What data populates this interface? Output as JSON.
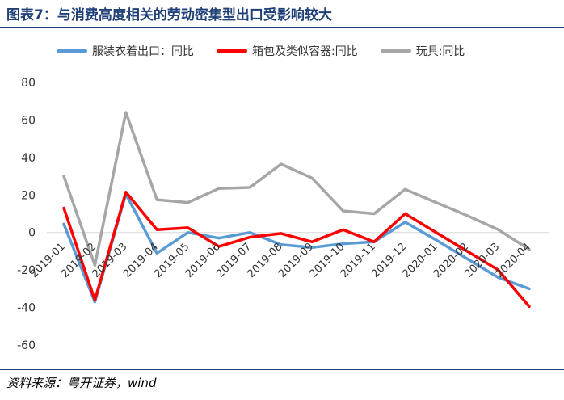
{
  "header": {
    "title": "图表7：与消费高度相关的劳动密集型出口受影响较大"
  },
  "footer": {
    "source": "资料来源：粤开证券，wind"
  },
  "colors": {
    "clothing": "#5b9bd5",
    "bags": "#ff0000",
    "toys": "#a6a6a6",
    "title": "#1f3f77"
  },
  "chart_data": {
    "type": "line",
    "title": "",
    "xlabel": "",
    "ylabel": "",
    "ylim": [
      -60,
      80
    ],
    "yticks": [
      80,
      60,
      40,
      20,
      0,
      -20,
      -40,
      -60
    ],
    "grid": false,
    "legend_position": "top",
    "x": [
      "2019-01",
      "2019-02",
      "2019-03",
      "2019-04",
      "2019-05",
      "2019-06",
      "2019-07",
      "2019-08",
      "2019-09",
      "2019-10",
      "2019-11",
      "2019-12",
      "2020-01",
      "2020-02",
      "2020-03",
      "2020-04"
    ],
    "series": [
      {
        "name": "服装衣着出口：同比",
        "color": "#5b9bd5",
        "values": [
          4.5,
          -37,
          20.5,
          -11,
          0,
          -3,
          0,
          -6.5,
          -8,
          -6,
          -5,
          5.5,
          -4,
          -14,
          -24,
          -30
        ]
      },
      {
        "name": "箱包及类似容器:同比",
        "color": "#ff0000",
        "values": [
          13,
          -36,
          21.5,
          1.5,
          2.5,
          -7.5,
          -2.5,
          -0.5,
          -5,
          1.5,
          -5,
          10,
          0,
          -10,
          -20,
          -39.5
        ]
      },
      {
        "name": "玩具:同比",
        "color": "#a6a6a6",
        "values": [
          30,
          -17.5,
          64,
          17.5,
          16,
          23.5,
          24,
          36.5,
          29,
          11.5,
          10,
          23,
          16,
          9,
          1.5,
          -9
        ]
      }
    ]
  }
}
